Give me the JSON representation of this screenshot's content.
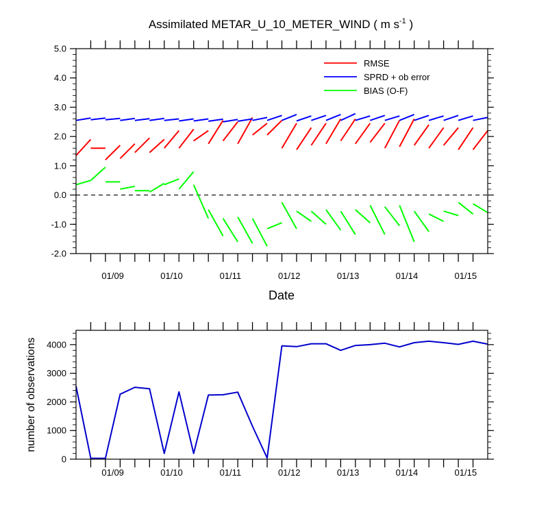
{
  "chart_data": [
    {
      "type": "line",
      "title_main": "Assimilated METAR_U_10_METER_WIND ( m s",
      "title_sup": "-1",
      "title_end": " )",
      "xlabel": "Date",
      "ylabel": "",
      "ylim": [
        -2.0,
        5.0
      ],
      "yticks": [
        "-2.0",
        "-1.0",
        "0.0",
        "1.0",
        "2.0",
        "3.0",
        "4.0",
        "5.0"
      ],
      "xlim": [
        0,
        28
      ],
      "xticks": [
        {
          "x": 2.5,
          "label": "01/09"
        },
        {
          "x": 6.5,
          "label": "01/10"
        },
        {
          "x": 10.5,
          "label": "01/11"
        },
        {
          "x": 14.5,
          "label": "01/12"
        },
        {
          "x": 18.5,
          "label": "01/13"
        },
        {
          "x": 22.5,
          "label": "01/14"
        },
        {
          "x": 26.5,
          "label": "01/15"
        }
      ],
      "zero_line": "dashed",
      "legend_position": "top-right",
      "series": [
        {
          "name": "RMSE",
          "color": "#ff0000",
          "segments": [
            [
              [
                0,
                1.35
              ],
              [
                1,
                1.9
              ]
            ],
            [
              [
                1,
                1.6
              ],
              [
                2,
                1.6
              ]
            ],
            [
              [
                2,
                1.2
              ],
              [
                3,
                1.7
              ]
            ],
            [
              [
                3,
                1.25
              ],
              [
                4,
                1.75
              ]
            ],
            [
              [
                4,
                1.45
              ],
              [
                5,
                1.95
              ]
            ],
            [
              [
                5,
                1.45
              ],
              [
                6,
                1.9
              ]
            ],
            [
              [
                6,
                1.6
              ],
              [
                7,
                2.2
              ]
            ],
            [
              [
                7,
                1.6
              ],
              [
                8,
                2.25
              ]
            ],
            [
              [
                8,
                1.85
              ],
              [
                9,
                2.2
              ]
            ],
            [
              [
                9,
                1.75
              ],
              [
                10,
                2.55
              ]
            ],
            [
              [
                10,
                1.85
              ],
              [
                11,
                2.5
              ]
            ],
            [
              [
                11,
                1.75
              ],
              [
                12,
                2.65
              ]
            ],
            [
              [
                12,
                2.05
              ],
              [
                13,
                2.45
              ]
            ],
            [
              [
                13,
                2.05
              ],
              [
                14,
                2.55
              ]
            ],
            [
              [
                14,
                1.6
              ],
              [
                15,
                2.45
              ]
            ],
            [
              [
                15,
                1.55
              ],
              [
                16,
                2.3
              ]
            ],
            [
              [
                16,
                1.7
              ],
              [
                17,
                2.45
              ]
            ],
            [
              [
                17,
                1.75
              ],
              [
                18,
                2.6
              ]
            ],
            [
              [
                18,
                1.85
              ],
              [
                19,
                2.6
              ]
            ],
            [
              [
                19,
                1.75
              ],
              [
                20,
                2.45
              ]
            ],
            [
              [
                20,
                1.8
              ],
              [
                21,
                2.45
              ]
            ],
            [
              [
                21,
                1.6
              ],
              [
                22,
                2.55
              ]
            ],
            [
              [
                22,
                1.65
              ],
              [
                23,
                2.6
              ]
            ],
            [
              [
                23,
                1.7
              ],
              [
                24,
                2.4
              ]
            ],
            [
              [
                24,
                1.6
              ],
              [
                25,
                2.3
              ]
            ],
            [
              [
                25,
                1.7
              ],
              [
                26,
                2.3
              ]
            ],
            [
              [
                26,
                1.55
              ],
              [
                27,
                2.3
              ]
            ],
            [
              [
                27,
                1.55
              ],
              [
                28,
                2.2
              ]
            ]
          ]
        },
        {
          "name": "SPRD + ob error",
          "color": "#0000ff",
          "segments": [
            [
              [
                0,
                2.55
              ],
              [
                1,
                2.63
              ]
            ],
            [
              [
                1,
                2.57
              ],
              [
                2,
                2.63
              ]
            ],
            [
              [
                2,
                2.57
              ],
              [
                3,
                2.62
              ]
            ],
            [
              [
                3,
                2.55
              ],
              [
                4,
                2.62
              ]
            ],
            [
              [
                4,
                2.55
              ],
              [
                5,
                2.61
              ]
            ],
            [
              [
                5,
                2.55
              ],
              [
                6,
                2.62
              ]
            ],
            [
              [
                6,
                2.55
              ],
              [
                7,
                2.6
              ]
            ],
            [
              [
                7,
                2.53
              ],
              [
                8,
                2.6
              ]
            ],
            [
              [
                8,
                2.53
              ],
              [
                9,
                2.6
              ]
            ],
            [
              [
                9,
                2.52
              ],
              [
                10,
                2.59
              ]
            ],
            [
              [
                10,
                2.5
              ],
              [
                11,
                2.58
              ]
            ],
            [
              [
                11,
                2.52
              ],
              [
                12,
                2.6
              ]
            ],
            [
              [
                12,
                2.55
              ],
              [
                13,
                2.65
              ]
            ],
            [
              [
                13,
                2.55
              ],
              [
                14,
                2.72
              ]
            ],
            [
              [
                14,
                2.55
              ],
              [
                15,
                2.75
              ]
            ],
            [
              [
                15,
                2.53
              ],
              [
                16,
                2.7
              ]
            ],
            [
              [
                16,
                2.55
              ],
              [
                17,
                2.72
              ]
            ],
            [
              [
                17,
                2.55
              ],
              [
                18,
                2.75
              ]
            ],
            [
              [
                18,
                2.55
              ],
              [
                19,
                2.78
              ]
            ],
            [
              [
                19,
                2.55
              ],
              [
                20,
                2.7
              ]
            ],
            [
              [
                20,
                2.55
              ],
              [
                21,
                2.72
              ]
            ],
            [
              [
                21,
                2.55
              ],
              [
                22,
                2.7
              ]
            ],
            [
              [
                22,
                2.55
              ],
              [
                23,
                2.75
              ]
            ],
            [
              [
                23,
                2.55
              ],
              [
                24,
                2.72
              ]
            ],
            [
              [
                24,
                2.55
              ],
              [
                25,
                2.7
              ]
            ],
            [
              [
                25,
                2.55
              ],
              [
                26,
                2.72
              ]
            ],
            [
              [
                26,
                2.55
              ],
              [
                27,
                2.7
              ]
            ],
            [
              [
                27,
                2.55
              ],
              [
                28,
                2.65
              ]
            ]
          ]
        },
        {
          "name": "BIAS (O-F)",
          "color": "#00ff00",
          "segments": [
            [
              [
                0,
                0.35
              ],
              [
                1,
                0.5
              ]
            ],
            [
              [
                1,
                0.5
              ],
              [
                2,
                0.95
              ]
            ],
            [
              [
                2,
                0.45
              ],
              [
                3,
                0.45
              ]
            ],
            [
              [
                3,
                0.2
              ],
              [
                4,
                0.3
              ]
            ],
            [
              [
                4,
                0.15
              ],
              [
                5,
                0.15
              ]
            ],
            [
              [
                5,
                0.1
              ],
              [
                6,
                0.4
              ]
            ],
            [
              [
                6,
                0.35
              ],
              [
                7,
                0.55
              ]
            ],
            [
              [
                7,
                0.2
              ],
              [
                8,
                0.8
              ]
            ],
            [
              [
                8,
                0.35
              ],
              [
                9,
                -0.8
              ]
            ],
            [
              [
                9,
                -0.5
              ],
              [
                10,
                -1.4
              ]
            ],
            [
              [
                10,
                -0.8
              ],
              [
                11,
                -1.6
              ]
            ],
            [
              [
                11,
                -0.75
              ],
              [
                12,
                -1.65
              ]
            ],
            [
              [
                12,
                -0.8
              ],
              [
                13,
                -1.75
              ]
            ],
            [
              [
                13,
                -1.15
              ],
              [
                14,
                -0.95
              ]
            ],
            [
              [
                14,
                -0.25
              ],
              [
                15,
                -1.15
              ]
            ],
            [
              [
                15,
                -0.55
              ],
              [
                16,
                -0.9
              ]
            ],
            [
              [
                16,
                -0.55
              ],
              [
                17,
                -1.0
              ]
            ],
            [
              [
                17,
                -0.5
              ],
              [
                18,
                -1.2
              ]
            ],
            [
              [
                18,
                -0.55
              ],
              [
                19,
                -1.35
              ]
            ],
            [
              [
                19,
                -0.5
              ],
              [
                20,
                -0.95
              ]
            ],
            [
              [
                20,
                -0.35
              ],
              [
                21,
                -1.35
              ]
            ],
            [
              [
                21,
                -0.4
              ],
              [
                22,
                -1.05
              ]
            ],
            [
              [
                22,
                -0.35
              ],
              [
                23,
                -1.6
              ]
            ],
            [
              [
                23,
                -0.55
              ],
              [
                24,
                -1.25
              ]
            ],
            [
              [
                24,
                -0.65
              ],
              [
                25,
                -0.9
              ]
            ],
            [
              [
                25,
                -0.55
              ],
              [
                26,
                -0.7
              ]
            ],
            [
              [
                26,
                -0.25
              ],
              [
                27,
                -0.65
              ]
            ],
            [
              [
                27,
                -0.3
              ],
              [
                28,
                -0.6
              ]
            ]
          ]
        }
      ]
    },
    {
      "type": "line",
      "title": "",
      "xlabel": "",
      "ylabel": "number of observations",
      "ylim": [
        0,
        4500
      ],
      "yticks": [
        "0",
        "1000",
        "2000",
        "3000",
        "4000"
      ],
      "xlim": [
        0,
        28
      ],
      "xticks": [
        {
          "x": 2.5,
          "label": "01/09"
        },
        {
          "x": 6.5,
          "label": "01/10"
        },
        {
          "x": 10.5,
          "label": "01/11"
        },
        {
          "x": 14.5,
          "label": "01/12"
        },
        {
          "x": 18.5,
          "label": "01/13"
        },
        {
          "x": 22.5,
          "label": "01/14"
        },
        {
          "x": 26.5,
          "label": "01/15"
        }
      ],
      "series": [
        {
          "name": "number of observations",
          "color": "#0000cc",
          "x": [
            0,
            1,
            2,
            3,
            4,
            5,
            6,
            7,
            8,
            9,
            10,
            11,
            12,
            13,
            14,
            15,
            16,
            17,
            18,
            19,
            20,
            21,
            22,
            23,
            24,
            25,
            26,
            27,
            28
          ],
          "values": [
            2550,
            30,
            30,
            2270,
            2510,
            2460,
            200,
            2350,
            200,
            2240,
            2250,
            2340,
            1150,
            40,
            3960,
            3930,
            4030,
            4030,
            3800,
            3970,
            4000,
            4050,
            3920,
            4070,
            4120,
            4070,
            4010,
            4120,
            4020
          ]
        }
      ]
    }
  ]
}
